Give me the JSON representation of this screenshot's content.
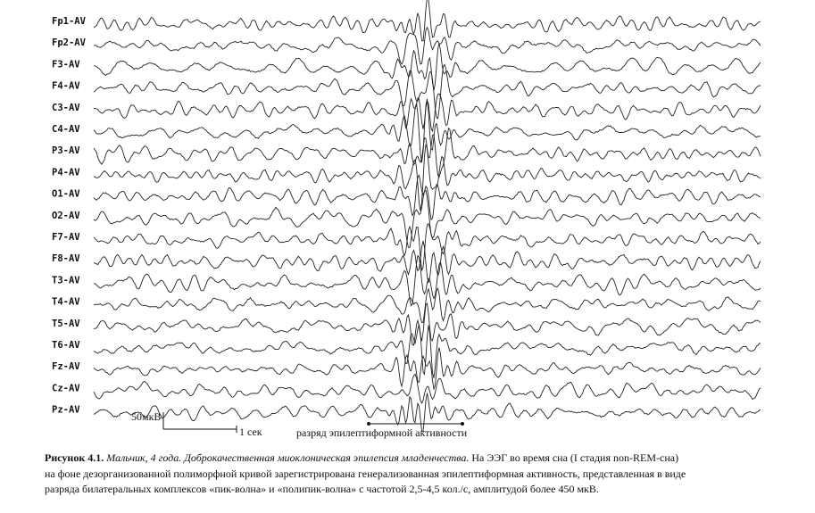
{
  "channels": [
    "Fp1-AV",
    "Fp2-AV",
    "F3-AV",
    "F4-AV",
    "C3-AV",
    "C4-AV",
    "P3-AV",
    "P4-AV",
    "O1-AV",
    "O2-AV",
    "F7-AV",
    "F8-AV",
    "T3-AV",
    "T4-AV",
    "T5-AV",
    "T6-AV",
    "Fz-AV",
    "Cz-AV",
    "Pz-AV"
  ],
  "scale": {
    "amplitude": "50мкВ",
    "time": "1 сек"
  },
  "discharge_label": "разряд эпилептиформной активности",
  "caption": {
    "label": "Рисунок 4.1.",
    "italic": "Мальчик, 4 года. Доброкачественная миоклоническая эпилепсия младенчества.",
    "lines": [
      "На ЭЭГ  во время сна (I стадия non-REM-сна)",
      "на фоне дезорганизованной  полиморфной кривой зарегистрирована генерализованная эпилептиформная активность, представленная в виде",
      "разряда билатеральных комплексов «пик-волна» и «полипик-волна» с частотой 2,5-4,5 кол./с, амплитудой более 450 мкВ."
    ]
  }
}
